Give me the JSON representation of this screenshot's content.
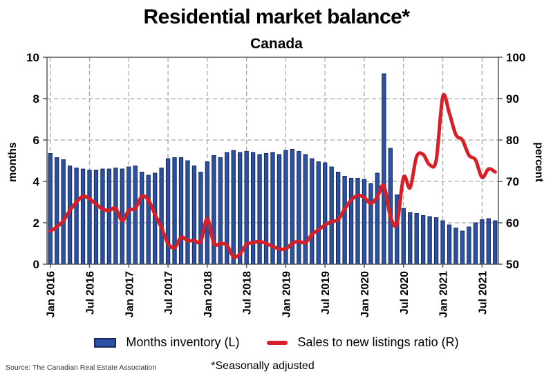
{
  "title": "Residential market balance*",
  "subtitle": "Canada",
  "left_axis": {
    "label": "months",
    "min": 0,
    "max": 10,
    "ticks": [
      0,
      2,
      4,
      6,
      8,
      10
    ]
  },
  "right_axis": {
    "label": "percent",
    "min": 50,
    "max": 100,
    "ticks": [
      50,
      60,
      70,
      80,
      90,
      100
    ]
  },
  "x_axis": {
    "tick_labels": [
      "Jan 2016",
      "Jul 2016",
      "Jan 2017",
      "Jul 2017",
      "Jan 2018",
      "Jul 2018",
      "Jan 2019",
      "Jul 2019",
      "Jan 2020",
      "Jul 2020",
      "Jan 2021",
      "Jul 2021"
    ]
  },
  "legend": {
    "items": [
      {
        "label": "Months inventory (L)",
        "type": "bar",
        "color": "#2b52a2",
        "border": "#17275e"
      },
      {
        "label": "Sales to new listings ratio (R)",
        "type": "line",
        "color": "#d81e26"
      }
    ]
  },
  "source": "Source: The Canadian Real Estate Association",
  "footnote": "*Seasonally adjusted",
  "colors": {
    "bar_fill": "#2b52a2",
    "bar_border": "#101f4e",
    "line": "#d81e26",
    "grid": "#a6a6a6",
    "axis": "#4d4d4d",
    "text": "#000000"
  },
  "chart_data": {
    "type": "bar+line",
    "title": "Residential market balance* — Canada",
    "x": [
      "Jan 2016",
      "Feb 2016",
      "Mar 2016",
      "Apr 2016",
      "May 2016",
      "Jun 2016",
      "Jul 2016",
      "Aug 2016",
      "Sep 2016",
      "Oct 2016",
      "Nov 2016",
      "Dec 2016",
      "Jan 2017",
      "Feb 2017",
      "Mar 2017",
      "Apr 2017",
      "May 2017",
      "Jun 2017",
      "Jul 2017",
      "Aug 2017",
      "Sep 2017",
      "Oct 2017",
      "Nov 2017",
      "Dec 2017",
      "Jan 2018",
      "Feb 2018",
      "Mar 2018",
      "Apr 2018",
      "May 2018",
      "Jun 2018",
      "Jul 2018",
      "Aug 2018",
      "Sep 2018",
      "Oct 2018",
      "Nov 2018",
      "Dec 2018",
      "Jan 2019",
      "Feb 2019",
      "Mar 2019",
      "Apr 2019",
      "May 2019",
      "Jun 2019",
      "Jul 2019",
      "Aug 2019",
      "Sep 2019",
      "Oct 2019",
      "Nov 2019",
      "Dec 2019",
      "Jan 2020",
      "Feb 2020",
      "Mar 2020",
      "Apr 2020",
      "May 2020",
      "Jun 2020",
      "Jul 2020",
      "Aug 2020",
      "Sep 2020",
      "Oct 2020",
      "Nov 2020",
      "Dec 2020",
      "Jan 2021",
      "Feb 2021",
      "Mar 2021",
      "Apr 2021",
      "May 2021",
      "Jun 2021",
      "Jul 2021",
      "Aug 2021",
      "Sep 2021"
    ],
    "series": [
      {
        "name": "Months inventory (L)",
        "type": "bar",
        "axis": "left",
        "unit": "months",
        "values": [
          5.35,
          5.15,
          5.05,
          4.75,
          4.65,
          4.6,
          4.55,
          4.55,
          4.6,
          4.6,
          4.65,
          4.6,
          4.7,
          4.75,
          4.45,
          4.3,
          4.4,
          4.65,
          5.1,
          5.15,
          5.15,
          5.0,
          4.75,
          4.45,
          4.95,
          5.25,
          5.15,
          5.4,
          5.5,
          5.4,
          5.45,
          5.4,
          5.3,
          5.35,
          5.4,
          5.3,
          5.5,
          5.55,
          5.45,
          5.3,
          5.1,
          4.95,
          4.9,
          4.7,
          4.45,
          4.25,
          4.15,
          4.15,
          4.1,
          3.9,
          4.4,
          9.2,
          5.6,
          3.35,
          2.7,
          2.5,
          2.45,
          2.35,
          2.3,
          2.25,
          2.1,
          1.9,
          1.75,
          1.6,
          1.8,
          2.0,
          2.15,
          2.2,
          2.1
        ]
      },
      {
        "name": "Sales to new listings ratio (R)",
        "type": "line",
        "axis": "right",
        "unit": "percent",
        "values": [
          58,
          59,
          60.5,
          63,
          65,
          66.4,
          65.8,
          64.5,
          63.3,
          63,
          63.5,
          60.5,
          63,
          63.5,
          66.4,
          65.5,
          62,
          58.8,
          55,
          54,
          56.5,
          55.7,
          55.7,
          55.5,
          61,
          55,
          55,
          54.6,
          51.8,
          52.5,
          54.8,
          55.2,
          55.5,
          55,
          54.3,
          53.7,
          53.7,
          55,
          55.5,
          55.2,
          57.2,
          58.3,
          59.5,
          60.3,
          60.8,
          63.3,
          65.5,
          66.6,
          66.1,
          64.7,
          66.3,
          69,
          61.5,
          59.8,
          71,
          68.5,
          76,
          76.5,
          74,
          75.2,
          90.5,
          86.5,
          81.3,
          80,
          76.3,
          75.2,
          71,
          73,
          72.3
        ]
      }
    ],
    "left_ylim": [
      0,
      10
    ],
    "right_ylim": [
      50,
      100
    ],
    "grid": "dashed, horizontal at left-axis 2/4/6/8 and vertical at each Jan & Jul",
    "legend_position": "bottom-center"
  }
}
